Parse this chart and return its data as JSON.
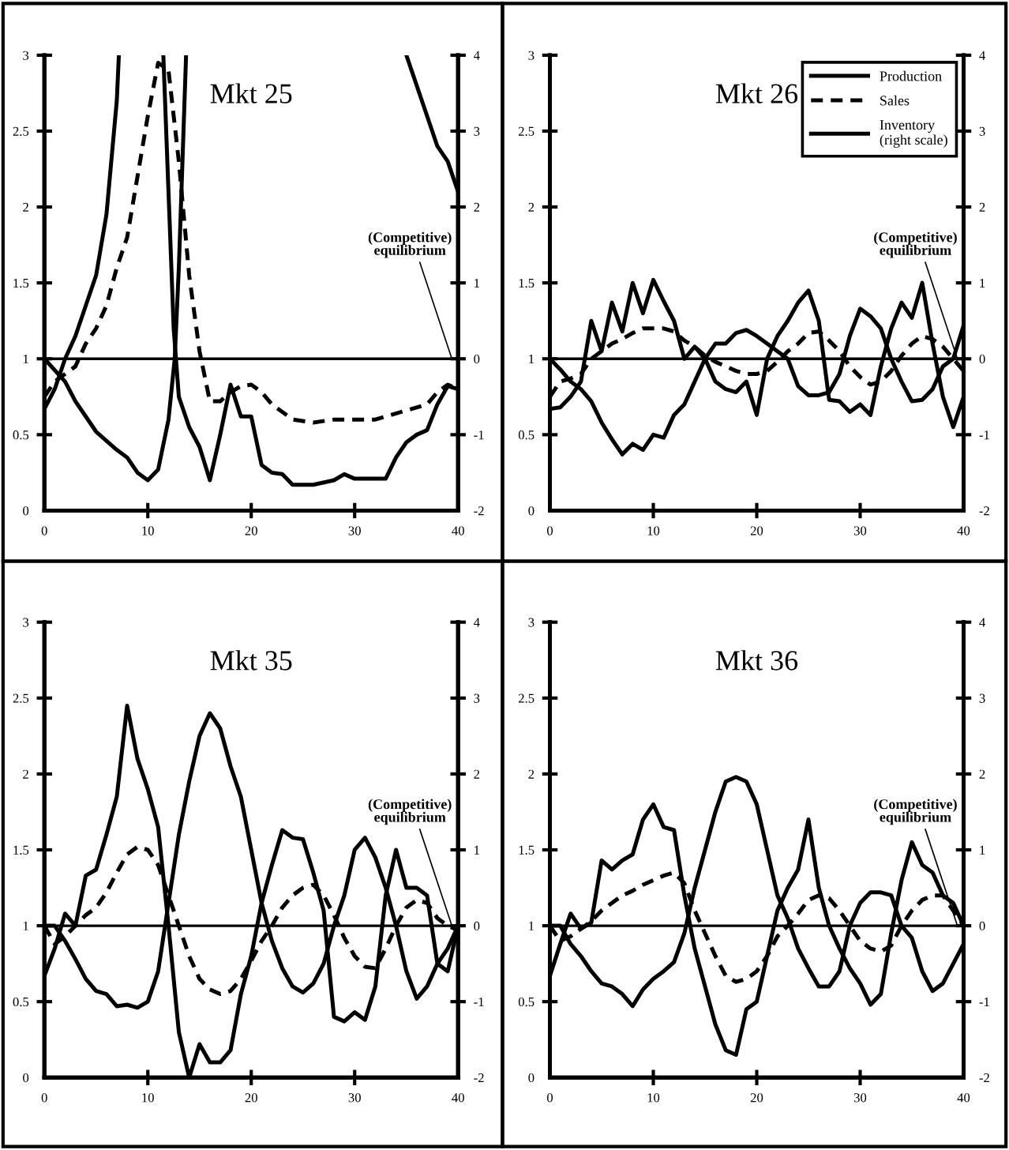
{
  "chart_data": [
    {
      "type": "line",
      "title": "Mkt 25",
      "xlim": [
        0,
        40
      ],
      "xticks": [
        0,
        10,
        20,
        30,
        40
      ],
      "ylim": [
        0,
        3
      ],
      "yticks": [
        0,
        0.5,
        1,
        1.5,
        2,
        2.5,
        3
      ],
      "y2lim": [
        -2,
        4
      ],
      "y2ticks": [
        -2,
        -1,
        0,
        1,
        2,
        3,
        4
      ],
      "legend": false,
      "ref_lines": [
        {
          "axis": "y",
          "value": 1,
          "label": "(Competitive)\nequilibrium"
        }
      ],
      "series": [
        {
          "color": "#000000",
          "line_style": "solid",
          "x": [
            0,
            1,
            2,
            3,
            4,
            5,
            6,
            7,
            7.2,
            9,
            11.5,
            12.5,
            13,
            14,
            15,
            16,
            17,
            18,
            19,
            20,
            21,
            22,
            23,
            24,
            26,
            28,
            29,
            30,
            33,
            34,
            35,
            36,
            37,
            38,
            39,
            40
          ],
          "values": [
            0.67,
            0.8,
            1.0,
            1.15,
            1.35,
            1.55,
            1.95,
            2.7,
            3,
            null,
            3,
            1.2,
            0.75,
            0.55,
            0.42,
            0.2,
            0.5,
            0.83,
            0.62,
            0.62,
            0.3,
            0.25,
            0.24,
            0.17,
            0.17,
            0.2,
            0.24,
            0.21,
            0.21,
            0.35,
            0.45,
            0.5,
            0.53,
            0.7,
            0.82,
            0.8
          ]
        },
        {
          "color": "#000000",
          "line_style": "dashed",
          "x": [
            0,
            1,
            2,
            3,
            4,
            5,
            6,
            7,
            8,
            9,
            10,
            11,
            12,
            13,
            14,
            15,
            16,
            17,
            18,
            19,
            20,
            21,
            22,
            23,
            24,
            26,
            28,
            30,
            32,
            33,
            35,
            37,
            38,
            39,
            40
          ],
          "values": [
            0.75,
            0.85,
            0.9,
            0.95,
            1.1,
            1.2,
            1.35,
            1.6,
            1.8,
            2.2,
            2.6,
            2.95,
            2.9,
            2.3,
            1.55,
            1.05,
            0.72,
            0.72,
            0.78,
            0.82,
            0.83,
            0.78,
            0.7,
            0.65,
            0.6,
            0.58,
            0.6,
            0.6,
            0.6,
            0.62,
            0.66,
            0.7,
            0.78,
            0.83,
            0.8
          ]
        },
        {
          "color": "#000000",
          "line_style": "solid",
          "axis": "y2",
          "x": [
            0,
            2,
            3,
            5,
            7,
            8,
            9,
            10,
            11,
            12,
            12.6,
            13,
            13.7,
            24,
            35,
            37,
            38,
            39,
            40
          ],
          "values": [
            0,
            -0.3,
            -0.56,
            -0.96,
            -1.2,
            -1.3,
            -1.5,
            -1.6,
            -1.46,
            -0.8,
            0,
            1.2,
            4,
            null,
            4,
            3.2,
            2.8,
            2.6,
            2.2
          ]
        }
      ]
    },
    {
      "type": "line",
      "title": "Mkt 26",
      "xlim": [
        0,
        40
      ],
      "xticks": [
        0,
        10,
        20,
        30,
        40
      ],
      "ylim": [
        0,
        3
      ],
      "yticks": [
        0,
        0.5,
        1,
        1.5,
        2,
        2.5,
        3
      ],
      "y2lim": [
        -2,
        4
      ],
      "y2ticks": [
        -2,
        -1,
        0,
        1,
        2,
        3,
        4
      ],
      "legend": "top right",
      "ref_lines": [
        {
          "axis": "y",
          "value": 1,
          "label": "(Competitive)\nequilibrium"
        }
      ],
      "series": [
        {
          "name": "Production",
          "color": "#000000",
          "line_style": "solid",
          "x": [
            0,
            1,
            2,
            3,
            4,
            5,
            6,
            7,
            8,
            9,
            10,
            11,
            12,
            13,
            14,
            15,
            16,
            17,
            18,
            19,
            20,
            21,
            22,
            23,
            24,
            25,
            26,
            27,
            28,
            29,
            30,
            31,
            32,
            33,
            34,
            35,
            36,
            37,
            38,
            39,
            40
          ],
          "values": [
            0.67,
            0.68,
            0.75,
            0.85,
            1.25,
            1.05,
            1.37,
            1.18,
            1.5,
            1.3,
            1.52,
            1.38,
            1.25,
            1.0,
            1.08,
            1.0,
            0.85,
            0.8,
            0.78,
            0.85,
            0.63,
            1.0,
            1.15,
            1.25,
            1.37,
            1.45,
            1.25,
            0.73,
            0.72,
            0.65,
            0.7,
            0.63,
            0.95,
            1.2,
            1.37,
            1.27,
            1.5,
            1.1,
            0.75,
            0.55,
            0.75
          ]
        },
        {
          "name": "Sales",
          "color": "#000000",
          "line_style": "dashed",
          "x": [
            0,
            1,
            2,
            3,
            4,
            5,
            6,
            7,
            8,
            9,
            10,
            11,
            12,
            13,
            14,
            15,
            16,
            17,
            18,
            19,
            20,
            21,
            22,
            23,
            24,
            25,
            26,
            27,
            28,
            29,
            30,
            31,
            32,
            33,
            34,
            35,
            36,
            37,
            38,
            39,
            40
          ],
          "values": [
            0.75,
            0.85,
            0.87,
            0.9,
            1.0,
            1.05,
            1.1,
            1.13,
            1.17,
            1.2,
            1.2,
            1.2,
            1.18,
            1.12,
            1.08,
            1.02,
            0.98,
            0.95,
            0.92,
            0.9,
            0.9,
            0.92,
            0.98,
            1.05,
            1.1,
            1.17,
            1.18,
            1.12,
            1.05,
            0.95,
            0.88,
            0.83,
            0.85,
            0.92,
            1.02,
            1.1,
            1.15,
            1.13,
            1.08,
            1.0,
            0.92
          ]
        },
        {
          "name": "Inventory\n(right scale)",
          "color": "#000000",
          "line_style": "solid",
          "axis": "y2",
          "x": [
            0,
            1,
            2,
            3,
            4,
            5,
            6,
            7,
            8,
            9,
            10,
            11,
            12,
            13,
            14,
            15,
            16,
            17,
            18,
            19,
            20,
            21,
            22,
            23,
            24,
            25,
            26,
            27,
            28,
            29,
            30,
            31,
            32,
            33,
            34,
            35,
            36,
            37,
            38,
            39,
            40
          ],
          "values": [
            0,
            -0.14,
            -0.3,
            -0.4,
            -0.56,
            -0.84,
            -1.06,
            -1.26,
            -1.12,
            -1.2,
            -1.0,
            -1.04,
            -0.74,
            -0.6,
            -0.3,
            0,
            0.2,
            0.2,
            0.34,
            0.38,
            0.3,
            0.2,
            0.1,
            0,
            -0.36,
            -0.48,
            -0.48,
            -0.44,
            -0.2,
            0.3,
            0.66,
            0.56,
            0.4,
            0,
            -0.3,
            -0.56,
            -0.54,
            -0.4,
            -0.1,
            0,
            0.44
          ]
        }
      ]
    },
    {
      "type": "line",
      "title": "Mkt 35",
      "xlim": [
        0,
        40
      ],
      "xticks": [
        0,
        10,
        20,
        30,
        40
      ],
      "ylim": [
        0,
        3
      ],
      "yticks": [
        0,
        0.5,
        1,
        1.5,
        2,
        2.5,
        3
      ],
      "y2lim": [
        -2,
        4
      ],
      "y2ticks": [
        -2,
        -1,
        0,
        1,
        2,
        3,
        4
      ],
      "legend": false,
      "ref_lines": [
        {
          "axis": "y",
          "value": 1,
          "label": "(Competitive)\nequilibrium"
        }
      ],
      "series": [
        {
          "color": "#000000",
          "line_style": "solid",
          "x": [
            0,
            1,
            2,
            3,
            4,
            5,
            6,
            7,
            8,
            9,
            10,
            11,
            12,
            13,
            14,
            15,
            16,
            17,
            18,
            19,
            20,
            21,
            22,
            23,
            24,
            25,
            26,
            27,
            28,
            29,
            30,
            31,
            32,
            33,
            34,
            35,
            36,
            37,
            38,
            39,
            40
          ],
          "values": [
            0.67,
            0.85,
            1.08,
            1.0,
            1.33,
            1.37,
            1.6,
            1.85,
            2.45,
            2.1,
            1.9,
            1.65,
            1.0,
            0.3,
            0.0,
            0.22,
            0.1,
            0.1,
            0.18,
            0.55,
            0.8,
            1.15,
            1.4,
            1.63,
            1.58,
            1.57,
            1.35,
            1.1,
            0.4,
            0.37,
            0.43,
            0.38,
            0.6,
            1.2,
            1.5,
            1.25,
            1.25,
            1.2,
            0.75,
            0.7,
            1.0
          ]
        },
        {
          "color": "#000000",
          "line_style": "dashed",
          "x": [
            0,
            1,
            2,
            3,
            4,
            5,
            6,
            7,
            8,
            9,
            10,
            11,
            12,
            13,
            14,
            15,
            16,
            17,
            18,
            19,
            20,
            21,
            22,
            23,
            24,
            25,
            26,
            27,
            28,
            29,
            30,
            31,
            32,
            33,
            34,
            35,
            36,
            37,
            38,
            39,
            40
          ],
          "values": [
            1.0,
            0.88,
            0.93,
            1.0,
            1.07,
            1.12,
            1.22,
            1.35,
            1.47,
            1.52,
            1.5,
            1.4,
            1.2,
            1.0,
            0.8,
            0.65,
            0.58,
            0.55,
            0.57,
            0.65,
            0.77,
            0.9,
            1.0,
            1.12,
            1.2,
            1.25,
            1.27,
            1.2,
            1.07,
            0.92,
            0.8,
            0.73,
            0.72,
            0.85,
            1.0,
            1.12,
            1.17,
            1.15,
            1.05,
            1.0,
            0.97
          ]
        },
        {
          "color": "#000000",
          "line_style": "solid",
          "axis": "y2",
          "x": [
            0,
            1,
            2,
            3,
            4,
            5,
            6,
            7,
            8,
            9,
            10,
            11,
            12,
            13,
            14,
            15,
            16,
            17,
            18,
            19,
            20,
            21,
            22,
            23,
            24,
            25,
            26,
            27,
            28,
            29,
            30,
            31,
            32,
            33,
            34,
            35,
            36,
            37,
            38,
            39,
            40
          ],
          "values": [
            0,
            0,
            -0.2,
            -0.44,
            -0.7,
            -0.86,
            -0.9,
            -1.06,
            -1.04,
            -1.08,
            -1.0,
            -0.6,
            0.3,
            1.2,
            1.9,
            2.5,
            2.8,
            2.6,
            2.1,
            1.7,
            1.0,
            0.3,
            -0.2,
            -0.56,
            -0.8,
            -0.88,
            -0.76,
            -0.5,
            0,
            0.4,
            1.0,
            1.16,
            0.9,
            0.5,
            0,
            -0.6,
            -0.96,
            -0.8,
            -0.5,
            -0.3,
            0
          ]
        }
      ]
    },
    {
      "type": "line",
      "title": "Mkt 36",
      "xlim": [
        0,
        40
      ],
      "xticks": [
        0,
        10,
        20,
        30,
        40
      ],
      "ylim": [
        0,
        3
      ],
      "yticks": [
        0,
        0.5,
        1,
        1.5,
        2,
        2.5,
        3
      ],
      "y2lim": [
        -2,
        4
      ],
      "y2ticks": [
        -2,
        -1,
        0,
        1,
        2,
        3,
        4
      ],
      "legend": false,
      "ref_lines": [
        {
          "axis": "y",
          "value": 1,
          "label": "(Competitive)\nequilibrium"
        }
      ],
      "series": [
        {
          "color": "#000000",
          "line_style": "solid",
          "x": [
            0,
            1,
            2,
            3,
            4,
            5,
            6,
            7,
            8,
            9,
            10,
            11,
            12,
            13,
            14,
            15,
            16,
            17,
            18,
            19,
            20,
            21,
            22,
            23,
            24,
            25,
            26,
            27,
            28,
            29,
            30,
            31,
            32,
            33,
            34,
            35,
            36,
            37,
            38,
            39,
            40
          ],
          "values": [
            0.67,
            0.88,
            1.08,
            0.98,
            1.02,
            1.43,
            1.37,
            1.43,
            1.47,
            1.7,
            1.8,
            1.65,
            1.63,
            1.2,
            0.85,
            0.6,
            0.35,
            0.18,
            0.15,
            0.45,
            0.5,
            0.8,
            1.1,
            1.25,
            1.37,
            1.7,
            1.25,
            1.0,
            0.85,
            0.72,
            0.62,
            0.48,
            0.55,
            0.95,
            1.3,
            1.55,
            1.4,
            1.35,
            1.2,
            1.15,
            1.0
          ]
        },
        {
          "color": "#000000",
          "line_style": "dashed",
          "x": [
            0,
            1,
            2,
            3,
            4,
            5,
            6,
            7,
            8,
            9,
            10,
            11,
            12,
            13,
            14,
            15,
            16,
            17,
            18,
            19,
            20,
            21,
            22,
            23,
            24,
            25,
            26,
            27,
            28,
            29,
            30,
            31,
            32,
            33,
            34,
            35,
            36,
            37,
            38,
            39,
            40
          ],
          "values": [
            1.0,
            0.9,
            0.93,
            0.98,
            1.03,
            1.1,
            1.15,
            1.2,
            1.23,
            1.27,
            1.3,
            1.33,
            1.35,
            1.28,
            1.1,
            0.95,
            0.8,
            0.67,
            0.63,
            0.65,
            0.7,
            0.8,
            0.93,
            1.0,
            1.08,
            1.17,
            1.2,
            1.18,
            1.1,
            1.0,
            0.9,
            0.85,
            0.83,
            0.87,
            1.0,
            1.1,
            1.17,
            1.2,
            1.2,
            1.1,
            1.0
          ]
        },
        {
          "color": "#000000",
          "line_style": "solid",
          "axis": "y2",
          "x": [
            0,
            1,
            2,
            3,
            4,
            5,
            6,
            7,
            8,
            9,
            10,
            11,
            12,
            13,
            14,
            15,
            16,
            17,
            18,
            19,
            20,
            21,
            22,
            23,
            24,
            25,
            26,
            27,
            28,
            29,
            30,
            31,
            32,
            33,
            34,
            35,
            36,
            37,
            38,
            39,
            40
          ],
          "values": [
            0,
            0,
            -0.24,
            -0.4,
            -0.6,
            -0.76,
            -0.8,
            -0.9,
            -1.06,
            -0.84,
            -0.7,
            -0.6,
            -0.48,
            -0.1,
            0.5,
            1.0,
            1.5,
            1.9,
            1.96,
            1.9,
            1.6,
            1.0,
            0.4,
            0.1,
            -0.3,
            -0.56,
            -0.8,
            -0.8,
            -0.6,
            0,
            0.3,
            0.44,
            0.44,
            0.4,
            0,
            -0.16,
            -0.6,
            -0.86,
            -0.76,
            -0.5,
            -0.24
          ]
        }
      ]
    }
  ]
}
